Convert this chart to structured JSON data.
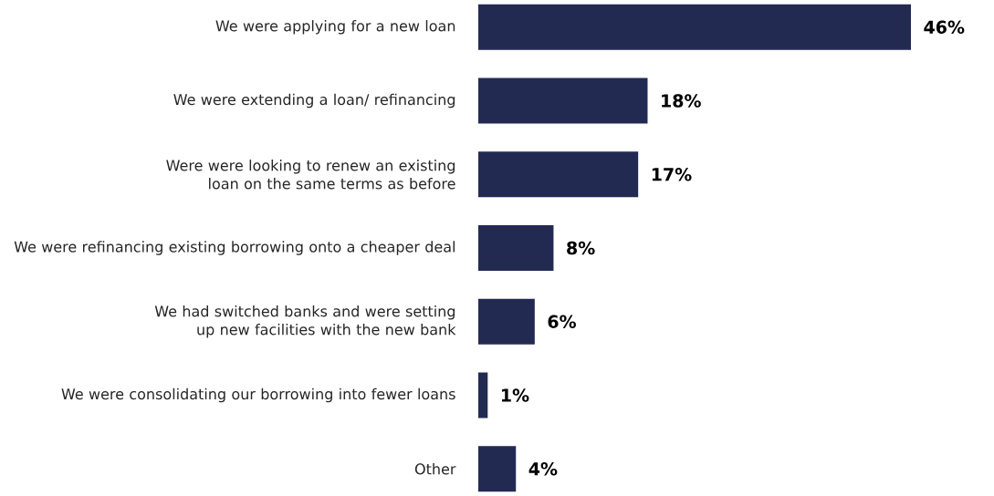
{
  "chart_data": {
    "type": "bar",
    "orientation": "horizontal",
    "categories": [
      "We were applying for a new loan",
      "We were extending a loan/ refinancing",
      "Were were looking to renew an existing loan on the same terms as before",
      "We were refinancing existing borrowing onto a cheaper deal",
      "We had switched banks and were setting up new facilities with the new bank",
      "We were consolidating our borrowing into fewer loans",
      "Other"
    ],
    "values": [
      46,
      18,
      17,
      8,
      6,
      1,
      4
    ],
    "value_labels": [
      "46%",
      "18%",
      "17%",
      "8%",
      "6%",
      "1%",
      "4%"
    ],
    "color": "#232a52"
  }
}
